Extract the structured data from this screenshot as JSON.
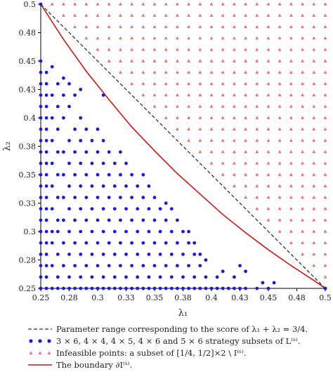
{
  "chart_data": {
    "type": "scatter",
    "xlabel": "λ₁",
    "ylabel": "λ₂",
    "xlim": [
      0.25,
      0.5
    ],
    "ylim": [
      0.25,
      0.5
    ],
    "x_ticks": [
      0.25,
      0.275,
      0.3,
      0.325,
      0.35,
      0.375,
      0.4,
      0.425,
      0.45,
      0.475,
      0.5
    ],
    "x_tick_labels": [
      "0.25",
      "0.28",
      "0.3",
      "0.33",
      "0.35",
      "0.38",
      "0.4",
      "0.43",
      "0.45",
      "0.48",
      "0.5"
    ],
    "y_ticks": [
      0.25,
      0.275,
      0.3,
      0.325,
      0.35,
      0.375,
      0.4,
      0.425,
      0.45,
      0.475,
      0.5
    ],
    "y_tick_labels": [
      "0.25",
      "0.28",
      "0.3",
      "0.33",
      "0.35",
      "0.38",
      "0.4",
      "0.43",
      "0.45",
      "0.48",
      "0.5"
    ],
    "grid": false,
    "legend_position": "bottom",
    "series": [
      {
        "name": "Parameter range corresponding to the score of λ₁ + λ₂ = 3/4.",
        "kind": "dashed-line",
        "color": "#333333",
        "x": [
          0.25,
          0.5
        ],
        "y": [
          0.5,
          0.25
        ]
      },
      {
        "name": "3 × 6, 4 × 4, 4 × 5, 4 × 6 and 5 × 6 strategy subsets of L⁽ˢ⁾.",
        "kind": "points",
        "marker": "circle",
        "color": "#1a1adb",
        "points": [
          [
            0.25,
            0.25
          ],
          [
            0.25,
            0.26
          ],
          [
            0.25,
            0.27
          ],
          [
            0.25,
            0.28
          ],
          [
            0.25,
            0.29
          ],
          [
            0.25,
            0.3
          ],
          [
            0.25,
            0.31
          ],
          [
            0.25,
            0.32
          ],
          [
            0.25,
            0.33
          ],
          [
            0.25,
            0.34
          ],
          [
            0.25,
            0.35
          ],
          [
            0.25,
            0.36
          ],
          [
            0.25,
            0.37
          ],
          [
            0.25,
            0.38
          ],
          [
            0.25,
            0.39
          ],
          [
            0.25,
            0.4
          ],
          [
            0.25,
            0.41
          ],
          [
            0.25,
            0.42
          ],
          [
            0.25,
            0.43
          ],
          [
            0.25,
            0.44
          ],
          [
            0.25,
            0.45
          ],
          [
            0.255,
            0.25
          ],
          [
            0.255,
            0.26
          ],
          [
            0.255,
            0.27
          ],
          [
            0.255,
            0.28
          ],
          [
            0.255,
            0.29
          ],
          [
            0.255,
            0.3
          ],
          [
            0.255,
            0.31
          ],
          [
            0.255,
            0.32
          ],
          [
            0.255,
            0.33
          ],
          [
            0.255,
            0.34
          ],
          [
            0.255,
            0.35
          ],
          [
            0.255,
            0.36
          ],
          [
            0.255,
            0.37
          ],
          [
            0.255,
            0.38
          ],
          [
            0.255,
            0.39
          ],
          [
            0.255,
            0.4
          ],
          [
            0.255,
            0.41
          ],
          [
            0.255,
            0.42
          ],
          [
            0.255,
            0.43
          ],
          [
            0.255,
            0.44
          ],
          [
            0.26,
            0.25
          ],
          [
            0.26,
            0.27
          ],
          [
            0.26,
            0.29
          ],
          [
            0.26,
            0.3
          ],
          [
            0.26,
            0.32
          ],
          [
            0.26,
            0.34
          ],
          [
            0.26,
            0.36
          ],
          [
            0.26,
            0.38
          ],
          [
            0.26,
            0.4
          ],
          [
            0.26,
            0.42
          ],
          [
            0.26,
            0.445
          ],
          [
            0.265,
            0.25
          ],
          [
            0.265,
            0.26
          ],
          [
            0.265,
            0.28
          ],
          [
            0.265,
            0.3
          ],
          [
            0.265,
            0.31
          ],
          [
            0.265,
            0.33
          ],
          [
            0.265,
            0.35
          ],
          [
            0.265,
            0.37
          ],
          [
            0.265,
            0.39
          ],
          [
            0.265,
            0.41
          ],
          [
            0.265,
            0.43
          ],
          [
            0.27,
            0.25
          ],
          [
            0.27,
            0.27
          ],
          [
            0.27,
            0.29
          ],
          [
            0.27,
            0.31
          ],
          [
            0.27,
            0.33
          ],
          [
            0.27,
            0.35
          ],
          [
            0.27,
            0.37
          ],
          [
            0.27,
            0.4
          ],
          [
            0.27,
            0.42
          ],
          [
            0.27,
            0.435
          ],
          [
            0.275,
            0.25
          ],
          [
            0.275,
            0.26
          ],
          [
            0.275,
            0.28
          ],
          [
            0.275,
            0.3
          ],
          [
            0.275,
            0.32
          ],
          [
            0.275,
            0.34
          ],
          [
            0.275,
            0.36
          ],
          [
            0.275,
            0.38
          ],
          [
            0.275,
            0.41
          ],
          [
            0.275,
            0.43
          ],
          [
            0.28,
            0.25
          ],
          [
            0.28,
            0.27
          ],
          [
            0.28,
            0.29
          ],
          [
            0.28,
            0.31
          ],
          [
            0.28,
            0.33
          ],
          [
            0.28,
            0.35
          ],
          [
            0.28,
            0.37
          ],
          [
            0.28,
            0.39
          ],
          [
            0.28,
            0.42
          ],
          [
            0.285,
            0.25
          ],
          [
            0.285,
            0.26
          ],
          [
            0.285,
            0.28
          ],
          [
            0.285,
            0.3
          ],
          [
            0.285,
            0.32
          ],
          [
            0.285,
            0.34
          ],
          [
            0.285,
            0.36
          ],
          [
            0.285,
            0.38
          ],
          [
            0.285,
            0.4
          ],
          [
            0.285,
            0.425
          ],
          [
            0.29,
            0.25
          ],
          [
            0.29,
            0.27
          ],
          [
            0.29,
            0.29
          ],
          [
            0.29,
            0.31
          ],
          [
            0.29,
            0.33
          ],
          [
            0.29,
            0.35
          ],
          [
            0.29,
            0.37
          ],
          [
            0.29,
            0.39
          ],
          [
            0.295,
            0.25
          ],
          [
            0.295,
            0.26
          ],
          [
            0.295,
            0.28
          ],
          [
            0.295,
            0.3
          ],
          [
            0.295,
            0.32
          ],
          [
            0.295,
            0.34
          ],
          [
            0.295,
            0.36
          ],
          [
            0.295,
            0.38
          ],
          [
            0.3,
            0.25
          ],
          [
            0.3,
            0.27
          ],
          [
            0.3,
            0.29
          ],
          [
            0.3,
            0.31
          ],
          [
            0.3,
            0.33
          ],
          [
            0.3,
            0.35
          ],
          [
            0.3,
            0.37
          ],
          [
            0.3,
            0.39
          ],
          [
            0.305,
            0.42
          ],
          [
            0.305,
            0.25
          ],
          [
            0.305,
            0.26
          ],
          [
            0.305,
            0.28
          ],
          [
            0.305,
            0.3
          ],
          [
            0.305,
            0.32
          ],
          [
            0.305,
            0.34
          ],
          [
            0.305,
            0.36
          ],
          [
            0.305,
            0.38
          ],
          [
            0.31,
            0.25
          ],
          [
            0.31,
            0.27
          ],
          [
            0.31,
            0.29
          ],
          [
            0.31,
            0.31
          ],
          [
            0.31,
            0.33
          ],
          [
            0.31,
            0.35
          ],
          [
            0.31,
            0.37
          ],
          [
            0.315,
            0.25
          ],
          [
            0.315,
            0.26
          ],
          [
            0.315,
            0.28
          ],
          [
            0.315,
            0.3
          ],
          [
            0.315,
            0.32
          ],
          [
            0.315,
            0.34
          ],
          [
            0.315,
            0.36
          ],
          [
            0.32,
            0.25
          ],
          [
            0.32,
            0.27
          ],
          [
            0.32,
            0.29
          ],
          [
            0.32,
            0.31
          ],
          [
            0.32,
            0.33
          ],
          [
            0.32,
            0.35
          ],
          [
            0.32,
            0.37
          ],
          [
            0.325,
            0.25
          ],
          [
            0.325,
            0.26
          ],
          [
            0.325,
            0.28
          ],
          [
            0.325,
            0.3
          ],
          [
            0.325,
            0.32
          ],
          [
            0.325,
            0.34
          ],
          [
            0.325,
            0.36
          ],
          [
            0.33,
            0.25
          ],
          [
            0.33,
            0.27
          ],
          [
            0.33,
            0.29
          ],
          [
            0.33,
            0.31
          ],
          [
            0.33,
            0.33
          ],
          [
            0.33,
            0.35
          ],
          [
            0.335,
            0.25
          ],
          [
            0.335,
            0.26
          ],
          [
            0.335,
            0.28
          ],
          [
            0.335,
            0.3
          ],
          [
            0.335,
            0.32
          ],
          [
            0.335,
            0.34
          ],
          [
            0.34,
            0.25
          ],
          [
            0.34,
            0.27
          ],
          [
            0.34,
            0.29
          ],
          [
            0.34,
            0.31
          ],
          [
            0.34,
            0.33
          ],
          [
            0.34,
            0.35
          ],
          [
            0.345,
            0.25
          ],
          [
            0.345,
            0.26
          ],
          [
            0.345,
            0.28
          ],
          [
            0.345,
            0.3
          ],
          [
            0.345,
            0.32
          ],
          [
            0.345,
            0.34
          ],
          [
            0.35,
            0.25
          ],
          [
            0.35,
            0.27
          ],
          [
            0.35,
            0.29
          ],
          [
            0.35,
            0.31
          ],
          [
            0.35,
            0.33
          ],
          [
            0.355,
            0.25
          ],
          [
            0.355,
            0.26
          ],
          [
            0.355,
            0.28
          ],
          [
            0.355,
            0.3
          ],
          [
            0.355,
            0.32
          ],
          [
            0.36,
            0.25
          ],
          [
            0.36,
            0.27
          ],
          [
            0.36,
            0.29
          ],
          [
            0.36,
            0.31
          ],
          [
            0.36,
            0.325
          ],
          [
            0.365,
            0.25
          ],
          [
            0.365,
            0.26
          ],
          [
            0.365,
            0.28
          ],
          [
            0.365,
            0.3
          ],
          [
            0.365,
            0.32
          ],
          [
            0.37,
            0.25
          ],
          [
            0.37,
            0.27
          ],
          [
            0.37,
            0.29
          ],
          [
            0.37,
            0.31
          ],
          [
            0.375,
            0.25
          ],
          [
            0.375,
            0.26
          ],
          [
            0.375,
            0.28
          ],
          [
            0.375,
            0.3
          ],
          [
            0.38,
            0.25
          ],
          [
            0.38,
            0.27
          ],
          [
            0.38,
            0.29
          ],
          [
            0.38,
            0.3
          ],
          [
            0.385,
            0.25
          ],
          [
            0.385,
            0.26
          ],
          [
            0.385,
            0.28
          ],
          [
            0.385,
            0.29
          ],
          [
            0.39,
            0.25
          ],
          [
            0.39,
            0.27
          ],
          [
            0.39,
            0.28
          ],
          [
            0.395,
            0.25
          ],
          [
            0.395,
            0.26
          ],
          [
            0.395,
            0.275
          ],
          [
            0.4,
            0.25
          ],
          [
            0.405,
            0.25
          ],
          [
            0.405,
            0.26
          ],
          [
            0.41,
            0.25
          ],
          [
            0.41,
            0.265
          ],
          [
            0.415,
            0.25
          ],
          [
            0.42,
            0.25
          ],
          [
            0.42,
            0.26
          ],
          [
            0.425,
            0.25
          ],
          [
            0.425,
            0.27
          ],
          [
            0.43,
            0.25
          ],
          [
            0.43,
            0.265
          ],
          [
            0.44,
            0.25
          ],
          [
            0.445,
            0.255
          ],
          [
            0.45,
            0.25
          ],
          [
            0.455,
            0.255
          ]
        ]
      },
      {
        "name": "Infeasible points: a subset of [1/4, 1/2]×2 \\ I⁽ˢ⁾.",
        "kind": "points",
        "marker": "triangle",
        "color": "#f06a6a",
        "grid_step": 0.01,
        "note_region": "grid points between the dashed line and the top-right corner"
      },
      {
        "name": "The boundary ∂I⁽ˢ⁾.",
        "kind": "curve",
        "color": "#d41414",
        "x": [
          0.25,
          0.27,
          0.29,
          0.31,
          0.33,
          0.35,
          0.37,
          0.39,
          0.41,
          0.43,
          0.45,
          0.47,
          0.49,
          0.5
        ],
        "y": [
          0.5,
          0.469,
          0.441,
          0.416,
          0.392,
          0.371,
          0.351,
          0.333,
          0.315,
          0.299,
          0.284,
          0.27,
          0.257,
          0.25
        ]
      }
    ]
  },
  "legend": {
    "items": [
      "Parameter range corresponding to the score of λ₁ + λ₂ = 3/4.",
      "3 × 6, 4 × 4, 4 × 5, 4 × 6 and 5 × 6 strategy subsets of L⁽ˢ⁾.",
      "Infeasible points: a subset of [1/4, 1/2]×2 \\ I⁽ˢ⁾.",
      "The boundary ∂I⁽ˢ⁾."
    ]
  }
}
